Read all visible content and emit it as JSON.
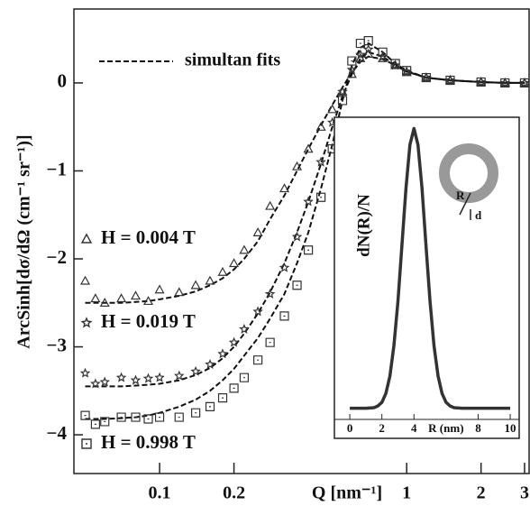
{
  "chart_data": [
    {
      "type": "scatter",
      "log_x": true,
      "x_label": "Q [nm⁻¹]",
      "y_label": "ArcSinh[dσ/dΩ (cm⁻¹ sr⁻¹)]",
      "xlim": [
        0.045,
        3.13
      ],
      "ylim": [
        -4.44,
        0.84
      ],
      "xticks": [
        0.1,
        0.2,
        1,
        2,
        3
      ],
      "yticks": [
        {
          "value": 0,
          "label": "0"
        },
        {
          "value": -1,
          "label": "−1"
        },
        {
          "value": -2,
          "label": "−2"
        },
        {
          "value": -3,
          "label": "−3"
        },
        {
          "value": -4,
          "label": "−4"
        }
      ],
      "x": [
        0.05,
        0.055,
        0.06,
        0.07,
        0.08,
        0.09,
        0.1,
        0.12,
        0.14,
        0.16,
        0.18,
        0.2,
        0.22,
        0.25,
        0.28,
        0.32,
        0.36,
        0.4,
        0.45,
        0.5,
        0.55,
        0.6,
        0.65,
        0.7,
        0.8,
        0.9,
        1.0,
        1.2,
        1.5,
        2,
        2.5,
        3
      ],
      "series": [
        {
          "name": "H = 0.004 T",
          "marker": "triangle",
          "color": "#333333",
          "values": [
            -2.25,
            -2.45,
            -2.5,
            -2.45,
            -2.42,
            -2.48,
            -2.35,
            -2.38,
            -2.3,
            -2.25,
            -2.15,
            -2.05,
            -1.9,
            -1.7,
            -1.4,
            -1.2,
            -0.95,
            -0.75,
            -0.5,
            -0.3,
            -0.1,
            0.1,
            0.28,
            0.33,
            0.28,
            0.2,
            0.12,
            0.06,
            0.03,
            0.01,
            0,
            0
          ]
        },
        {
          "name": "H = 0.019 T",
          "marker": "star",
          "color": "#333333",
          "values": [
            -3.3,
            -3.42,
            -3.4,
            -3.35,
            -3.38,
            -3.36,
            -3.35,
            -3.33,
            -3.28,
            -3.2,
            -3.08,
            -2.95,
            -2.8,
            -2.6,
            -2.4,
            -2.1,
            -1.75,
            -1.35,
            -0.9,
            -0.45,
            -0.1,
            0.15,
            0.32,
            0.38,
            0.3,
            0.2,
            0.13,
            0.06,
            0.03,
            0.01,
            0,
            0
          ]
        },
        {
          "name": "H = 0.998 T",
          "marker": "square",
          "color": "#333333",
          "values": [
            -3.78,
            -3.88,
            -3.85,
            -3.8,
            -3.8,
            -3.82,
            -3.8,
            -3.8,
            -3.75,
            -3.68,
            -3.58,
            -3.47,
            -3.35,
            -3.15,
            -2.95,
            -2.65,
            -2.3,
            -1.9,
            -1.3,
            -0.75,
            -0.2,
            0.25,
            0.45,
            0.48,
            0.35,
            0.22,
            0.14,
            0.06,
            0.03,
            0.01,
            0,
            0
          ]
        }
      ],
      "fit_label": "simultan fits",
      "fit_color": "#111111",
      "fits": [
        {
          "values": [
            -2.5,
            -2.5,
            -2.5,
            -2.5,
            -2.49,
            -2.48,
            -2.46,
            -2.42,
            -2.37,
            -2.3,
            -2.22,
            -2.12,
            -2.0,
            -1.8,
            -1.55,
            -1.28,
            -1.0,
            -0.75,
            -0.48,
            -0.25,
            -0.05,
            0.12,
            0.24,
            0.3,
            0.27,
            0.2,
            0.13,
            0.06,
            0.03,
            0.01,
            0,
            0
          ]
        },
        {
          "values": [
            -3.45,
            -3.45,
            -3.45,
            -3.45,
            -3.44,
            -3.43,
            -3.42,
            -3.38,
            -3.32,
            -3.24,
            -3.13,
            -3.0,
            -2.85,
            -2.62,
            -2.38,
            -2.05,
            -1.7,
            -1.35,
            -0.92,
            -0.5,
            -0.15,
            0.1,
            0.28,
            0.35,
            0.3,
            0.2,
            0.13,
            0.06,
            0.03,
            0.01,
            0,
            0
          ]
        },
        {
          "values": [
            -3.82,
            -3.82,
            -3.82,
            -3.81,
            -3.8,
            -3.78,
            -3.75,
            -3.68,
            -3.6,
            -3.5,
            -3.38,
            -3.25,
            -3.1,
            -2.9,
            -2.68,
            -2.4,
            -2.05,
            -1.7,
            -1.2,
            -0.7,
            -0.2,
            0.2,
            0.4,
            0.45,
            0.35,
            0.22,
            0.14,
            0.06,
            0.03,
            0.01,
            0,
            0
          ]
        }
      ]
    },
    {
      "type": "line",
      "x_label": "R (nm)",
      "y_label": "dN(R)/N",
      "xlim": [
        -0.96,
        10.56
      ],
      "ylim": [
        -0.04,
        1.04
      ],
      "xticks": [
        0,
        2,
        4,
        8,
        10
      ],
      "x": [
        0,
        1,
        1.5,
        1.75,
        2,
        2.25,
        2.5,
        2.75,
        3,
        3.25,
        3.5,
        3.75,
        4,
        4.25,
        4.5,
        4.75,
        5,
        5.25,
        5.5,
        5.75,
        6,
        6.25,
        6.5,
        7,
        8,
        9,
        10
      ],
      "values": [
        0,
        0,
        0.002,
        0.008,
        0.021,
        0.053,
        0.115,
        0.223,
        0.382,
        0.582,
        0.786,
        0.942,
        1,
        0.942,
        0.786,
        0.582,
        0.382,
        0.223,
        0.115,
        0.053,
        0.021,
        0.008,
        0.002,
        0,
        0,
        0,
        0
      ],
      "color": "#333333",
      "annotations": [
        "R",
        "d"
      ]
    }
  ]
}
